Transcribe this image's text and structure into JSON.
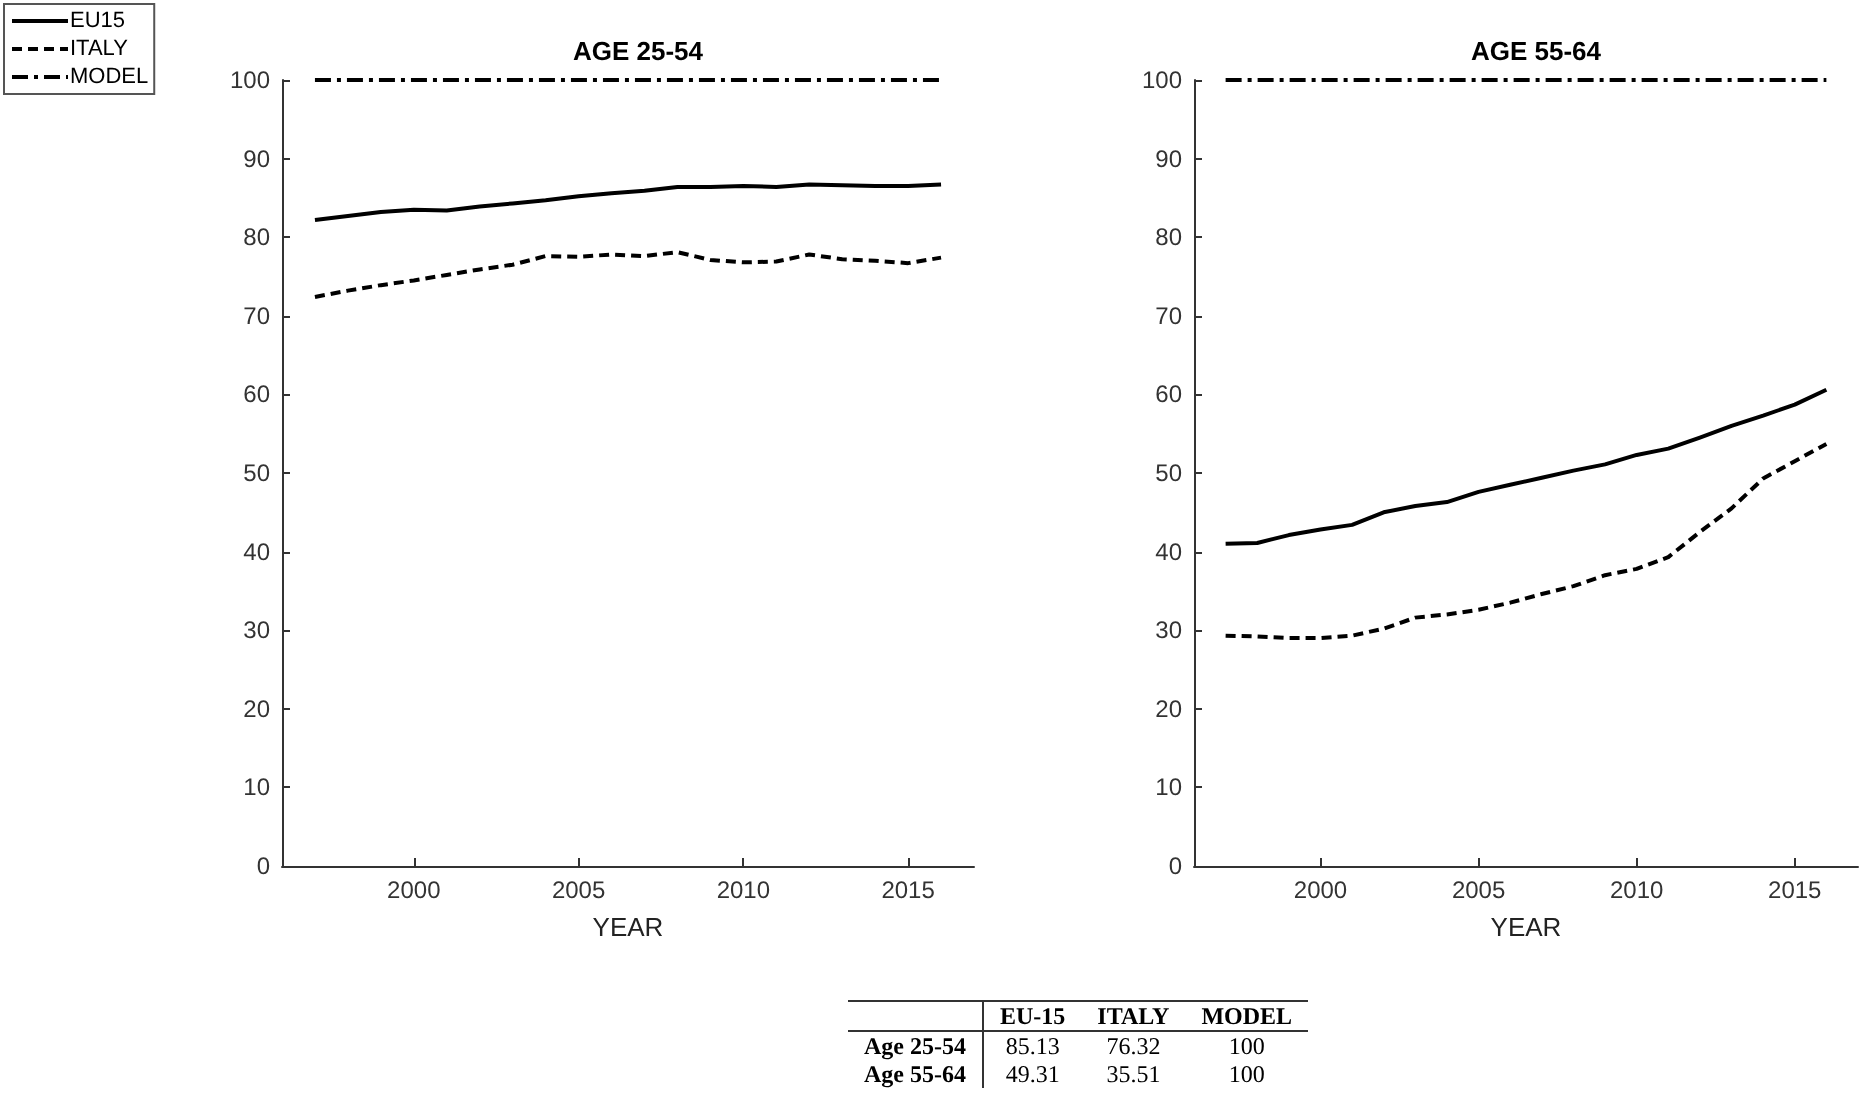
{
  "chart_data": [
    {
      "type": "line",
      "title": "AGE 25-54",
      "xlabel": "YEAR",
      "x": [
        1997,
        1998,
        1999,
        2000,
        2001,
        2002,
        2003,
        2004,
        2005,
        2006,
        2007,
        2008,
        2009,
        2010,
        2011,
        2012,
        2013,
        2014,
        2015,
        2016
      ],
      "series": [
        {
          "name": "EU15",
          "color": "#000000",
          "line_style": "solid",
          "values": [
            82.2,
            82.7,
            83.2,
            83.5,
            83.4,
            83.9,
            84.3,
            84.7,
            85.2,
            85.6,
            85.9,
            86.4,
            86.4,
            86.5,
            86.4,
            86.7,
            86.6,
            86.5,
            86.5,
            86.7
          ]
        },
        {
          "name": "ITALY",
          "color": "#000000",
          "line_style": "dashed",
          "values": [
            72.4,
            73.2,
            73.9,
            74.5,
            75.2,
            75.9,
            76.5,
            77.6,
            77.5,
            77.8,
            77.6,
            78.1,
            77.1,
            76.8,
            76.9,
            77.8,
            77.2,
            77.0,
            76.7,
            77.4
          ]
        },
        {
          "name": "MODEL",
          "color": "#000000",
          "line_style": "dashdot",
          "values": [
            100,
            100,
            100,
            100,
            100,
            100,
            100,
            100,
            100,
            100,
            100,
            100,
            100,
            100,
            100,
            100,
            100,
            100,
            100,
            100
          ]
        }
      ],
      "xlim": [
        1996,
        2017
      ],
      "xticks": [
        2000,
        2005,
        2010,
        2015
      ],
      "ylim": [
        0,
        100
      ],
      "yticks": [
        0,
        10,
        20,
        30,
        40,
        50,
        60,
        70,
        80,
        90,
        100
      ],
      "grid": false,
      "legend": "top left",
      "marker": "none"
    },
    {
      "type": "line",
      "title": "AGE 55-64",
      "xlabel": "YEAR",
      "x": [
        1997,
        1998,
        1999,
        2000,
        2001,
        2002,
        2003,
        2004,
        2005,
        2006,
        2007,
        2008,
        2009,
        2010,
        2011,
        2012,
        2013,
        2014,
        2015,
        2016
      ],
      "series": [
        {
          "color": "#000000",
          "line_style": "solid",
          "values": [
            41.0,
            41.1,
            42.1,
            42.8,
            43.4,
            45.0,
            45.8,
            46.3,
            47.6,
            48.5,
            49.4,
            50.3,
            51.1,
            52.3,
            53.1,
            54.5,
            56.0,
            57.3,
            58.7,
            60.6
          ]
        },
        {
          "color": "#000000",
          "line_style": "dashed",
          "values": [
            29.3,
            29.2,
            29.0,
            29.0,
            29.3,
            30.2,
            31.6,
            32.0,
            32.6,
            33.5,
            34.6,
            35.6,
            37.0,
            37.8,
            39.3,
            42.5,
            45.5,
            49.3,
            51.5,
            53.7
          ]
        },
        {
          "color": "#000000",
          "line_style": "dashdot",
          "values": [
            100,
            100,
            100,
            100,
            100,
            100,
            100,
            100,
            100,
            100,
            100,
            100,
            100,
            100,
            100,
            100,
            100,
            100,
            100,
            100
          ]
        }
      ],
      "xlim": [
        1996,
        2017
      ],
      "xticks": [
        2000,
        2005,
        2010,
        2015
      ],
      "ylim": [
        0,
        100
      ],
      "yticks": [
        0,
        10,
        20,
        30,
        40,
        50,
        60,
        70,
        80,
        90,
        100
      ],
      "grid": false,
      "legend": false,
      "marker": "none"
    },
    {
      "type": "other",
      "categories": [
        "EU-15",
        "ITALY",
        "MODEL"
      ],
      "y_categories": [
        "Age 25-54",
        "Age 55-64"
      ],
      "cell_labels": [
        [
          "85.13",
          "76.32",
          "100"
        ],
        [
          "49.31",
          "35.51",
          "100"
        ]
      ]
    }
  ]
}
